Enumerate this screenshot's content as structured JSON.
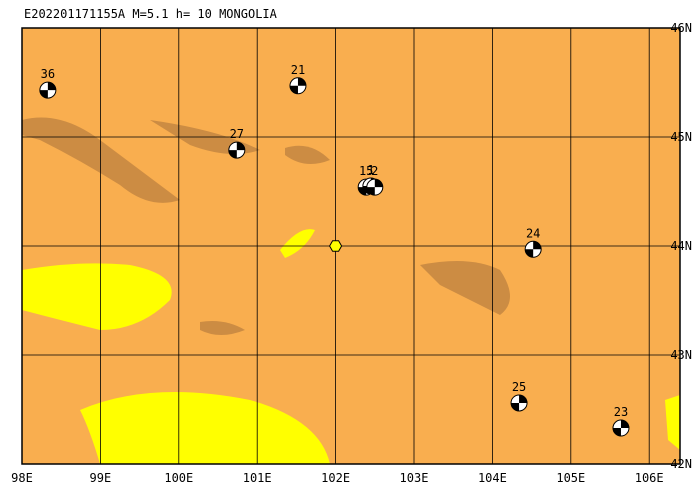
{
  "title": "E202201171155A  M=5.1  h= 10  MONGOLIA",
  "map": {
    "lonlim": [
      98,
      106
    ],
    "latlim": [
      42,
      46
    ],
    "lonticks": [
      {
        "value": 98,
        "label": "98E"
      },
      {
        "value": 99,
        "label": "99E"
      },
      {
        "value": 100,
        "label": "100E"
      },
      {
        "value": 101,
        "label": "101E"
      },
      {
        "value": 102,
        "label": "102E"
      },
      {
        "value": 103,
        "label": "103E"
      },
      {
        "value": 104,
        "label": "104E"
      },
      {
        "value": 105,
        "label": "105E"
      },
      {
        "value": 106,
        "label": "106E"
      }
    ],
    "latticks": [
      {
        "value": 42,
        "label": "42N"
      },
      {
        "value": 43,
        "label": "43N"
      },
      {
        "value": 44,
        "label": "44N"
      },
      {
        "value": 45,
        "label": "45N"
      },
      {
        "value": 46,
        "label": "46N"
      }
    ],
    "epicenter": {
      "lon": 102,
      "lat": 44
    },
    "events": [
      {
        "label": "36",
        "lon": 98.33,
        "lat": 45.43
      },
      {
        "label": "21",
        "lon": 101.52,
        "lat": 45.47
      },
      {
        "label": "27",
        "lon": 100.74,
        "lat": 44.88
      },
      {
        "label": "15",
        "lon": 102.39,
        "lat": 44.54
      },
      {
        "label": "1",
        "lon": 102.45,
        "lat": 44.55
      },
      {
        "label": "2",
        "lon": 102.5,
        "lat": 44.54
      },
      {
        "label": "24",
        "lon": 104.52,
        "lat": 43.97
      },
      {
        "label": "25",
        "lon": 104.34,
        "lat": 42.56
      },
      {
        "label": "23",
        "lon": 105.64,
        "lat": 42.33
      }
    ]
  }
}
